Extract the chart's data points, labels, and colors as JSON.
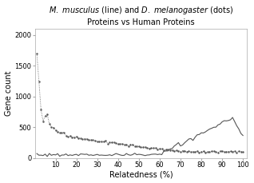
{
  "title_line1": "M. musculus (line) and D. melanogaster (dots)",
  "title_line2": "Proteins vs Human Proteins",
  "xlabel": "Relatedness (%)",
  "ylabel": "Gene count",
  "xlim": [
    0,
    102
  ],
  "ylim": [
    0,
    2100
  ],
  "yticks": [
    0,
    500,
    1000,
    1500,
    2000
  ],
  "xticks": [
    10,
    20,
    30,
    40,
    50,
    60,
    70,
    80,
    90,
    100
  ],
  "line_color": "#555555",
  "dot_color": "#555555"
}
